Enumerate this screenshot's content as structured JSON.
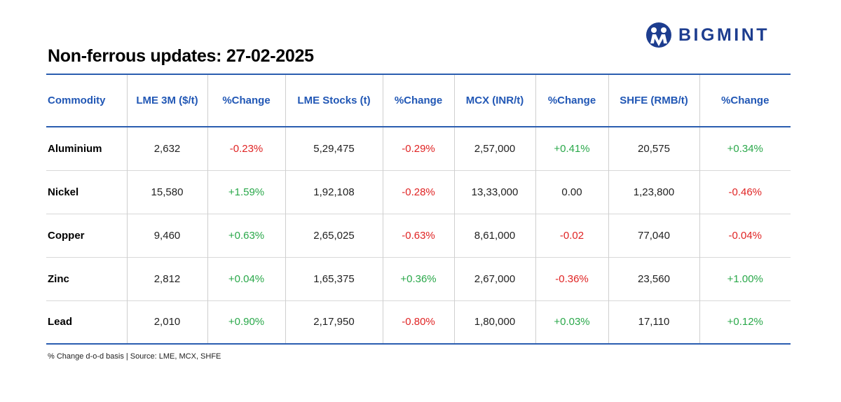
{
  "header": {
    "title": "Non-ferrous updates: 27-02-2025",
    "logo": "BIGMINT"
  },
  "table": {
    "headers": [
      "Commodity",
      "LME 3M ($/t)",
      "%Change",
      "LME Stocks (t)",
      "%Change",
      "MCX (INR/t)",
      "%Change",
      "SHFE (RMB/t)",
      "%Change"
    ],
    "rows": [
      [
        "Aluminium",
        "2,632",
        "-0.23%",
        "5,29,475",
        "-0.29%",
        "2,57,000",
        "+0.41%",
        "20,575",
        "+0.34%"
      ],
      [
        "Nickel",
        "15,580",
        "+1.59%",
        "1,92,108",
        "-0.28%",
        "13,33,000",
        "0.00",
        "1,23,800",
        "-0.46%"
      ],
      [
        "Copper",
        "9,460",
        "+0.63%",
        "2,65,025",
        "-0.63%",
        "8,61,000",
        "-0.02",
        "77,040",
        "-0.04%"
      ],
      [
        "Zinc",
        "2,812",
        "+0.04%",
        "1,65,375",
        "+0.36%",
        "2,67,000",
        "-0.36%",
        "23,560",
        "+1.00%"
      ],
      [
        "Lead",
        "2,010",
        "+0.90%",
        "2,17,950",
        "-0.80%",
        "1,80,000",
        "+0.03%",
        "17,110",
        "+0.12%"
      ]
    ]
  },
  "footnote": "% Change d-o-d basis | Source: LME, MCX, SHFE"
}
